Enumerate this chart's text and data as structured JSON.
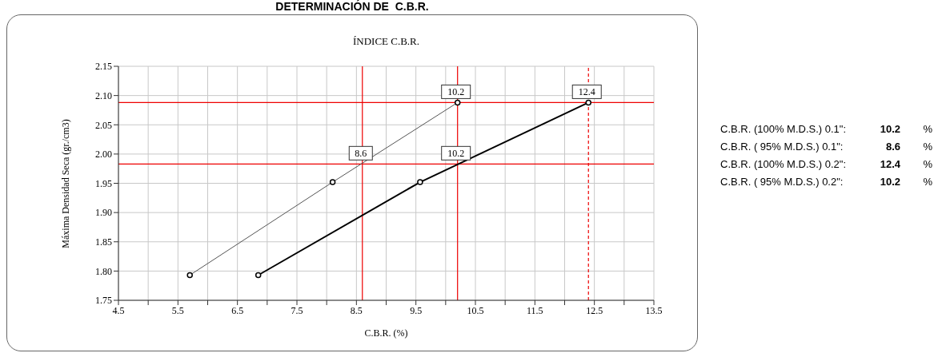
{
  "chart_data": {
    "type": "line",
    "title": "DETERMINACIÓN DE  C.B.R.",
    "subtitle": "ÍNDICE C.B.R.",
    "xlabel": "C.B.R. (%)",
    "ylabel": "Máxima Densidad Seca (gr./cm3)",
    "series": [
      {
        "color": "#555555",
        "x": [
          5.7,
          8.1,
          10.2
        ],
        "values": [
          1.793,
          1.952,
          2.088
        ]
      },
      {
        "color": "#000000",
        "x": [
          6.85,
          9.57,
          12.4
        ],
        "values": [
          1.793,
          1.952,
          2.088
        ]
      }
    ],
    "marker": "circle",
    "line_style": "solid",
    "grid": true,
    "xlim": [
      4.5,
      13.5
    ],
    "xticks": [
      4.5,
      {
        "value": 5,
        "label": null
      },
      5.5,
      {
        "value": 6,
        "label": null
      },
      6.5,
      {
        "value": 7,
        "label": null
      },
      7.5,
      {
        "value": 8,
        "label": null
      },
      8.5,
      {
        "value": 9,
        "label": null
      },
      9.5,
      {
        "value": 10,
        "label": null
      },
      10.5,
      {
        "value": 11,
        "label": null
      },
      11.5,
      {
        "value": 12,
        "label": null
      },
      12.5,
      {
        "value": 13,
        "label": null
      },
      13.5
    ],
    "ylim": [
      1.75,
      2.15
    ],
    "yticks": [
      1.75,
      {
        "value": 1.8,
        "label": "1.80"
      },
      1.85,
      {
        "value": 1.9,
        "label": "1.90"
      },
      1.95,
      {
        "value": 2,
        "label": "2.00"
      },
      2.05,
      {
        "value": 2.1,
        "label": "2.10"
      },
      2.15
    ],
    "ref_lines": [
      {
        "axis": "y",
        "value": 2.088,
        "color": "#ee0000",
        "line_style": "solid"
      },
      {
        "axis": "y",
        "value": 1.983,
        "color": "#ee0000",
        "line_style": "solid"
      },
      {
        "axis": "x",
        "value": 8.6,
        "color": "#ee0000",
        "line_style": "solid"
      },
      {
        "axis": "x",
        "value": 10.2,
        "color": "#ee0000",
        "line_style": "solid"
      },
      {
        "axis": "x",
        "value": 12.4,
        "color": "#ee0000",
        "line_style": "dashed"
      }
    ],
    "annotations": [
      {
        "text": "10.2",
        "x": 10.2,
        "y": 2.088
      },
      {
        "text": "8.6",
        "x": 8.6,
        "y": 1.983
      },
      {
        "text": "10.2",
        "x": 10.2,
        "y": 1.983
      },
      {
        "text": "12.4",
        "x": 12.4,
        "y": 2.088
      },
      "C.B.R. (100% M.D.S.) 0.1\":",
      "10.2",
      "%",
      "C.B.R. ( 95% M.D.S.) 0.1\":",
      "8.6",
      "%",
      "C.B.R. (100% M.D.S.) 0.2\":",
      "12.4",
      "%",
      "C.B.R. ( 95% M.D.S.) 0.2\":",
      "10.2",
      "%"
    ]
  }
}
